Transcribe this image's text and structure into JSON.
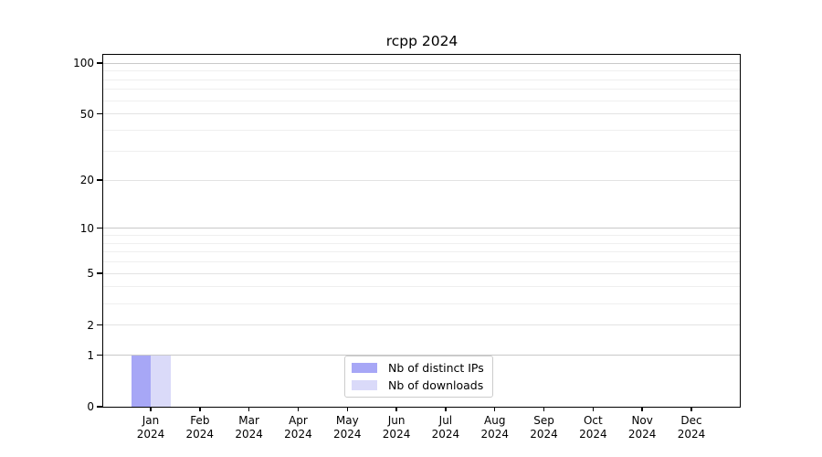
{
  "chart_data": {
    "type": "bar",
    "title": "rcpp 2024",
    "categories": [
      "Jan",
      "Feb",
      "Mar",
      "Apr",
      "May",
      "Jun",
      "Jul",
      "Aug",
      "Sep",
      "Oct",
      "Nov",
      "Dec"
    ],
    "category_year": "2024",
    "series": [
      {
        "name": "Nb of distinct IPs",
        "color": "#a7a7f6",
        "values": [
          1,
          0,
          0,
          0,
          0,
          0,
          0,
          0,
          0,
          0,
          0,
          0
        ]
      },
      {
        "name": "Nb of downloads",
        "color": "#dadaf9",
        "values": [
          1,
          0,
          0,
          0,
          0,
          0,
          0,
          0,
          0,
          0,
          0,
          0
        ]
      }
    ],
    "xlabel": "",
    "ylabel": "",
    "yscale": "log1p",
    "ylim": [
      0,
      112
    ],
    "yticks": [
      0,
      1,
      2,
      5,
      10,
      20,
      50,
      100
    ],
    "gridlines": {
      "major": [
        1,
        10,
        100
      ],
      "mid": [
        2,
        5,
        20,
        50
      ],
      "minor": [
        3,
        4,
        6,
        7,
        8,
        9,
        30,
        40,
        60,
        70,
        80,
        90
      ]
    },
    "legend_position": "bottom-center",
    "grid": true,
    "colors": {
      "spine": "#000000",
      "grid_major": "#c9c9c9",
      "grid_minor": "#efefef",
      "background": "#ffffff"
    }
  }
}
